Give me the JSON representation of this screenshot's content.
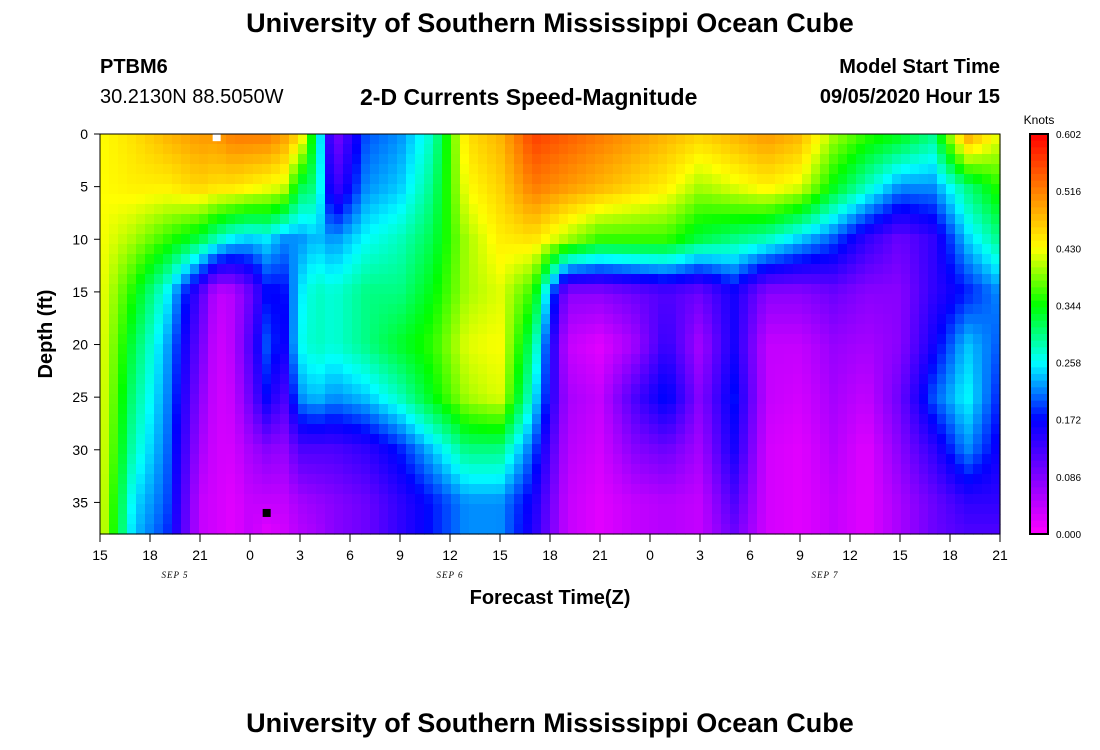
{
  "header": {
    "title": "University of Southern Mississippi Ocean Cube",
    "station_id": "PTBM6",
    "station_coords": "30.2130N 88.5050W",
    "plot_title": "2-D Currents Speed-Magnitude",
    "model_start_label": "Model Start Time",
    "model_start_value": "09/05/2020 Hour 15"
  },
  "footer": {
    "title": "University of Southern Mississippi Ocean Cube"
  },
  "chart_data": {
    "type": "heatmap",
    "xlabel": "Forecast Time(Z)",
    "ylabel": "Depth (ft)",
    "xlim": [
      0,
      54
    ],
    "ylim": [
      0,
      38
    ],
    "x_ticks": [
      "15",
      "18",
      "21",
      "0",
      "3",
      "6",
      "9",
      "12",
      "15",
      "18",
      "21",
      "0",
      "3",
      "6",
      "9",
      "12",
      "15",
      "18",
      "21"
    ],
    "y_ticks": [
      0,
      5,
      10,
      15,
      20,
      25,
      30,
      35
    ],
    "date_labels": [
      {
        "text": "SEP 5",
        "hour": 4.5
      },
      {
        "text": "SEP 6",
        "hour": 21
      },
      {
        "text": "SEP 7",
        "hour": 43.5
      }
    ],
    "colorbar": {
      "unit": "Knots",
      "range": [
        0,
        0.602
      ],
      "ticks": [
        "0.000",
        "0.086",
        "0.172",
        "0.258",
        "0.344",
        "0.430",
        "0.516",
        "0.602"
      ]
    },
    "colors": {
      "scale": [
        "#ff00ff",
        "#8000ff",
        "#0000ff",
        "#00ffff",
        "#00ff00",
        "#ffff00",
        "#ff8000",
        "#ff0000"
      ]
    },
    "depths": [
      0,
      5,
      10,
      15,
      20,
      25,
      30,
      35,
      38
    ],
    "hours": [
      0,
      2,
      4,
      6,
      7,
      8,
      9,
      10,
      11,
      12,
      13,
      14,
      16,
      18,
      20,
      22,
      24,
      26,
      28,
      30,
      32,
      34,
      36,
      38,
      40,
      42,
      44,
      46,
      48,
      50,
      52,
      54
    ],
    "speed": [
      [
        0.43,
        0.43,
        0.43,
        0.43,
        0.43,
        0.43,
        0.43,
        0.43,
        0.43
      ],
      [
        0.45,
        0.44,
        0.4,
        0.35,
        0.32,
        0.3,
        0.28,
        0.25,
        0.24
      ],
      [
        0.48,
        0.44,
        0.36,
        0.26,
        0.23,
        0.22,
        0.21,
        0.2,
        0.19
      ],
      [
        0.5,
        0.46,
        0.32,
        0.12,
        0.1,
        0.08,
        0.06,
        0.04,
        0.04
      ],
      [
        0.5,
        0.45,
        0.28,
        0.04,
        0.03,
        0.03,
        0.03,
        0.03,
        0.03
      ],
      [
        0.52,
        0.45,
        0.25,
        0.05,
        0.05,
        0.04,
        0.03,
        0.02,
        0.02
      ],
      [
        0.52,
        0.44,
        0.24,
        0.1,
        0.12,
        0.1,
        0.06,
        0.04,
        0.04
      ],
      [
        0.52,
        0.43,
        0.25,
        0.17,
        0.2,
        0.17,
        0.08,
        0.04,
        0.02
      ],
      [
        0.5,
        0.42,
        0.22,
        0.17,
        0.16,
        0.12,
        0.07,
        0.04,
        0.03
      ],
      [
        0.46,
        0.32,
        0.22,
        0.25,
        0.26,
        0.22,
        0.12,
        0.06,
        0.05
      ],
      [
        0.3,
        0.3,
        0.24,
        0.28,
        0.28,
        0.24,
        0.12,
        0.07,
        0.06
      ],
      [
        0.08,
        0.12,
        0.22,
        0.27,
        0.27,
        0.22,
        0.12,
        0.08,
        0.08
      ],
      [
        0.2,
        0.22,
        0.26,
        0.3,
        0.3,
        0.24,
        0.14,
        0.1,
        0.1
      ],
      [
        0.22,
        0.24,
        0.28,
        0.3,
        0.33,
        0.28,
        0.18,
        0.14,
        0.14
      ],
      [
        0.28,
        0.3,
        0.32,
        0.34,
        0.36,
        0.34,
        0.24,
        0.18,
        0.18
      ],
      [
        0.45,
        0.43,
        0.4,
        0.4,
        0.42,
        0.4,
        0.3,
        0.22,
        0.22
      ],
      [
        0.48,
        0.46,
        0.44,
        0.42,
        0.43,
        0.42,
        0.3,
        0.22,
        0.22
      ],
      [
        0.56,
        0.52,
        0.45,
        0.36,
        0.3,
        0.26,
        0.2,
        0.16,
        0.15
      ],
      [
        0.54,
        0.5,
        0.4,
        0.08,
        0.04,
        0.06,
        0.05,
        0.04,
        0.04
      ],
      [
        0.52,
        0.48,
        0.36,
        0.08,
        0.02,
        0.04,
        0.03,
        0.02,
        0.02
      ],
      [
        0.5,
        0.46,
        0.36,
        0.1,
        0.06,
        0.12,
        0.08,
        0.04,
        0.04
      ],
      [
        0.48,
        0.44,
        0.36,
        0.12,
        0.14,
        0.18,
        0.1,
        0.05,
        0.05
      ],
      [
        0.46,
        0.4,
        0.32,
        0.1,
        0.06,
        0.08,
        0.06,
        0.04,
        0.04
      ],
      [
        0.48,
        0.42,
        0.3,
        0.16,
        0.16,
        0.18,
        0.16,
        0.12,
        0.1
      ],
      [
        0.5,
        0.44,
        0.28,
        0.08,
        0.04,
        0.04,
        0.03,
        0.03,
        0.03
      ],
      [
        0.48,
        0.42,
        0.24,
        0.08,
        0.04,
        0.03,
        0.02,
        0.02,
        0.02
      ],
      [
        0.4,
        0.34,
        0.2,
        0.1,
        0.07,
        0.06,
        0.05,
        0.04,
        0.04
      ],
      [
        0.36,
        0.28,
        0.14,
        0.08,
        0.06,
        0.04,
        0.02,
        0.02,
        0.02
      ],
      [
        0.34,
        0.22,
        0.1,
        0.08,
        0.08,
        0.1,
        0.08,
        0.06,
        0.06
      ],
      [
        0.3,
        0.22,
        0.14,
        0.14,
        0.16,
        0.2,
        0.14,
        0.1,
        0.1
      ],
      [
        0.5,
        0.3,
        0.24,
        0.18,
        0.24,
        0.26,
        0.22,
        0.14,
        0.12
      ],
      [
        0.42,
        0.36,
        0.3,
        0.22,
        0.2,
        0.18,
        0.16,
        0.14,
        0.12
      ]
    ],
    "point_markers": [
      {
        "hour": 7,
        "depth": 0.3,
        "color": "#ffffff"
      },
      {
        "hour": 10,
        "depth": 36,
        "color": "#000000"
      }
    ]
  }
}
